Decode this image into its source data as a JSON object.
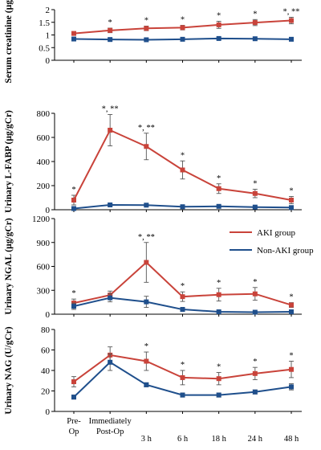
{
  "chart_data": [
    {
      "type": "line",
      "ylabel": "Serum creatinine (µg/dl)",
      "ylim": [
        0,
        2
      ],
      "yticks": [
        "0",
        "0.5",
        "1",
        "1.5",
        "2"
      ],
      "categories": [
        "Pre-Op",
        "Immediately Post-Op",
        "3 h",
        "6 h",
        "18 h",
        "24 h",
        "48 h"
      ],
      "series": [
        {
          "name": "AKI group",
          "color": "#c9433a",
          "values": [
            1.06,
            1.18,
            1.26,
            1.29,
            1.4,
            1.49,
            1.57
          ],
          "errors": [
            0.07,
            0.09,
            0.09,
            0.09,
            0.14,
            0.12,
            0.13
          ]
        },
        {
          "name": "Non-AKI group",
          "color": "#1f4f8c",
          "values": [
            0.84,
            0.82,
            0.81,
            0.83,
            0.86,
            0.85,
            0.83
          ],
          "errors": [
            0.03,
            0.03,
            0.03,
            0.03,
            0.03,
            0.02,
            0.02
          ]
        }
      ],
      "annotations": [
        "",
        "*",
        "*",
        "*",
        "*",
        "*",
        "*,**"
      ]
    },
    {
      "type": "line",
      "ylabel": "Urinary L-FABP (µg/gCr)",
      "ylim": [
        0,
        800
      ],
      "yticks": [
        "0",
        "200",
        "400",
        "600",
        "800"
      ],
      "categories": [
        "Pre-Op",
        "Immediately Post-Op",
        "3 h",
        "6 h",
        "18 h",
        "24 h",
        "48 h"
      ],
      "series": [
        {
          "name": "AKI group",
          "color": "#c9433a",
          "values": [
            80,
            660,
            525,
            330,
            175,
            135,
            80
          ],
          "errors": [
            40,
            130,
            110,
            75,
            40,
            35,
            30
          ]
        },
        {
          "name": "Non-AKI group",
          "color": "#1f4f8c",
          "values": [
            10,
            40,
            38,
            25,
            28,
            22,
            18
          ],
          "errors": [
            5,
            8,
            8,
            6,
            6,
            5,
            5
          ]
        }
      ],
      "annotations": [
        "*",
        "*,**",
        "*,**",
        "*",
        "*",
        "*",
        "*"
      ]
    },
    {
      "type": "line",
      "ylabel": "Urinary NGAL (µg/gCr)",
      "ylim": [
        0,
        1200
      ],
      "yticks": [
        "0",
        "300",
        "600",
        "900",
        "1200"
      ],
      "categories": [
        "Pre-Op",
        "Immediately Post-Op",
        "3 h",
        "6 h",
        "18 h",
        "24 h",
        "48 h"
      ],
      "series": [
        {
          "name": "AKI group",
          "color": "#c9433a",
          "values": [
            140,
            240,
            650,
            220,
            245,
            255,
            115
          ],
          "errors": [
            50,
            50,
            250,
            60,
            80,
            80,
            30
          ]
        },
        {
          "name": "Non-AKI group",
          "color": "#1f4f8c",
          "values": [
            100,
            205,
            155,
            60,
            30,
            25,
            30
          ],
          "errors": [
            40,
            50,
            70,
            25,
            10,
            8,
            8
          ]
        }
      ],
      "annotations": [
        "*",
        "",
        "*,**",
        "*",
        "*",
        "*",
        "*"
      ],
      "legend": {
        "position": "top-right",
        "entries": [
          "AKI group",
          "Non-AKI group"
        ]
      }
    },
    {
      "type": "line",
      "ylabel": "Urinary NAG (U/gCr)",
      "ylim": [
        0,
        80
      ],
      "yticks": [
        "0",
        "20",
        "40",
        "60",
        "80"
      ],
      "categories": [
        "Pre-Op",
        "Immediately Post-Op",
        "3 h",
        "6 h",
        "18 h",
        "24 h",
        "48 h"
      ],
      "xtick_lines": [
        [
          "Pre-",
          "Op"
        ],
        [
          "Immediately",
          "Post-Op"
        ],
        [
          "3 h"
        ],
        [
          "6 h"
        ],
        [
          "18 h"
        ],
        [
          "24 h"
        ],
        [
          "48 h"
        ]
      ],
      "series": [
        {
          "name": "AKI group",
          "color": "#c9433a",
          "values": [
            29,
            55,
            49,
            33,
            32,
            37,
            41
          ],
          "errors": [
            5,
            8,
            9,
            7,
            6,
            6,
            8
          ]
        },
        {
          "name": "Non-AKI group",
          "color": "#1f4f8c",
          "values": [
            14,
            48,
            26,
            16,
            16,
            19,
            24
          ],
          "errors": [
            2,
            8,
            2,
            2,
            2,
            2,
            3
          ]
        }
      ],
      "annotations": [
        "",
        "",
        "*",
        "*",
        "*",
        "*",
        "*"
      ]
    }
  ]
}
